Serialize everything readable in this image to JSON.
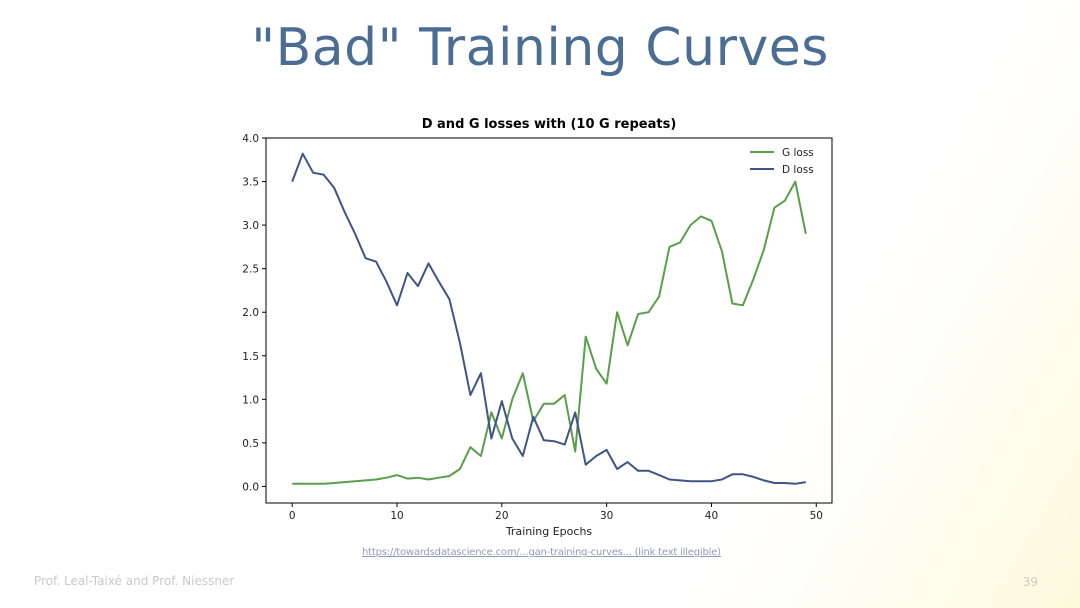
{
  "slide": {
    "title": "\"Bad\" Training Curves",
    "source_link": "https://towardsdatascience.com/...gan-training-curves... (link text illegible)",
    "footer": "Prof. Leal-Taixé and Prof. Niessner",
    "page_number": "39"
  },
  "colors": {
    "title": "#4b6d94",
    "g_loss": "#5a9e4b",
    "d_loss": "#3f5585",
    "axis": "#000000"
  },
  "chart_data": {
    "type": "line",
    "title": "D and G losses with (10 G repeats)",
    "xlabel": "Training Epochs",
    "ylabel": "",
    "xlim": [
      -2.5,
      51.5
    ],
    "ylim": [
      -0.19,
      4.0
    ],
    "xticks": [
      0,
      10,
      20,
      30,
      40,
      50
    ],
    "yticks": [
      0.0,
      0.5,
      1.0,
      1.5,
      2.0,
      2.5,
      3.0,
      3.5,
      4.0
    ],
    "ytick_labels": [
      "0.0",
      "0.5",
      "1.0",
      "1.5",
      "2.0",
      "2.5",
      "3.0",
      "3.5",
      "4.0"
    ],
    "legend_position": "top-right",
    "x": [
      0,
      1,
      2,
      3,
      4,
      5,
      6,
      7,
      8,
      9,
      10,
      11,
      12,
      13,
      14,
      15,
      16,
      17,
      18,
      19,
      20,
      21,
      22,
      23,
      24,
      25,
      26,
      27,
      28,
      29,
      30,
      31,
      32,
      33,
      34,
      35,
      36,
      37,
      38,
      39,
      40,
      41,
      42,
      43,
      44,
      45,
      46,
      47,
      48,
      49
    ],
    "series": [
      {
        "name": "G loss",
        "color": "#5a9e4b",
        "values": [
          0.03,
          0.03,
          0.03,
          0.03,
          0.04,
          0.05,
          0.06,
          0.07,
          0.08,
          0.1,
          0.13,
          0.09,
          0.1,
          0.08,
          0.1,
          0.12,
          0.2,
          0.45,
          0.35,
          0.85,
          0.55,
          1.0,
          1.3,
          0.75,
          0.95,
          0.95,
          1.05,
          0.4,
          1.72,
          1.35,
          1.18,
          2.0,
          1.62,
          1.98,
          2.0,
          2.18,
          2.75,
          2.8,
          3.0,
          3.1,
          3.05,
          2.7,
          2.1,
          2.08,
          2.38,
          2.72,
          3.2,
          3.28,
          3.5,
          2.9
        ]
      },
      {
        "name": "D loss",
        "color": "#3f5585",
        "values": [
          3.5,
          3.82,
          3.6,
          3.58,
          3.43,
          3.15,
          2.9,
          2.62,
          2.58,
          2.35,
          2.08,
          2.45,
          2.3,
          2.56,
          2.35,
          2.15,
          1.65,
          1.05,
          1.3,
          0.55,
          0.98,
          0.55,
          0.35,
          0.8,
          0.53,
          0.52,
          0.48,
          0.85,
          0.25,
          0.35,
          0.42,
          0.2,
          0.28,
          0.18,
          0.18,
          0.13,
          0.08,
          0.07,
          0.06,
          0.06,
          0.06,
          0.08,
          0.14,
          0.14,
          0.11,
          0.07,
          0.04,
          0.04,
          0.03,
          0.05
        ]
      }
    ]
  }
}
